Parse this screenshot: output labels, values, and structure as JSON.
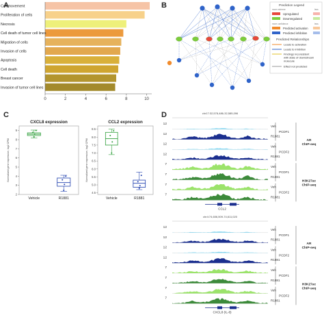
{
  "panels": {
    "a": "A",
    "b": "B",
    "c": "C",
    "d": "D"
  },
  "panelA": {
    "chart_data": {
      "type": "bar",
      "orientation": "horizontal",
      "categories": [
        "Cell movement",
        "Proliferation of cells",
        "Necrosis",
        "Cell death of tumor cell lines",
        "Migration of cells",
        "Invasion of cells",
        "Apoptosis",
        "Cell death",
        "Breast cancer",
        "Invasion of tumor cell lines"
      ],
      "values": [
        10.3,
        9.8,
        8.0,
        7.7,
        7.5,
        7.4,
        7.3,
        7.2,
        7.0,
        6.9
      ],
      "colors": [
        "#f6c4a6",
        "#f7d18a",
        "#eef07a",
        "#ec9a3d",
        "#e6b25c",
        "#e2a84e",
        "#d9b03a",
        "#cfa530",
        "#b3952e",
        "#a38a2b"
      ],
      "xlim": [
        0,
        10.5
      ],
      "xticks": [
        "0",
        "2",
        "4",
        "6",
        "8",
        "10"
      ],
      "xtick_values": [
        0,
        2,
        4,
        6,
        8,
        10
      ]
    }
  },
  "panelB": {
    "legend": {
      "title": "Prediction Legend",
      "sub1": "more extreme",
      "sub1r": "less",
      "item1": "Upregulated",
      "item2": "Downregulated",
      "sub2": "more confidence",
      "sub2r": "less",
      "item3": "Predicted activation",
      "item4": "Predicted inhibition",
      "title2": "Predicted Relationships",
      "r1": "Leads to activation",
      "r2": "Leads to inhibition",
      "r3": "Findings inconsistent",
      "r3b": "with state of downstream",
      "r3c": "molecule",
      "r4": "Effect not predicted"
    },
    "colors": {
      "up": "#e8473b",
      "down": "#7ccd3c",
      "act": "#f18b2c",
      "inh": "#2f63c9",
      "gray": "#9a9a9a",
      "yellow": "#e2c12b"
    }
  },
  "panelC": {
    "charts": [
      {
        "chart_data": {
          "type": "box",
          "title": "CXCL8 expression",
          "ylabel": "Normalized gene expression, log2 CPM",
          "categories": [
            "Vehicle",
            "R1881"
          ],
          "yticks": [
            "2",
            "3",
            "4",
            "5",
            "6",
            "7",
            "8",
            "9"
          ],
          "ytick_values": [
            2,
            3,
            4,
            5,
            6,
            7,
            8,
            9
          ],
          "ylim": [
            2,
            9.5
          ],
          "boxes": [
            {
              "color": "#2e9e3a",
              "min": 8.2,
              "q1": 8.45,
              "median": 8.6,
              "q3": 8.75,
              "max": 9.05,
              "points": [
                8.3,
                8.6,
                8.8,
                9.0
              ]
            },
            {
              "color": "#1f3fae",
              "min": 2.35,
              "q1": 2.9,
              "median": 3.3,
              "q3": 3.8,
              "max": 4.1,
              "points": [
                2.45,
                3.1,
                3.6,
                4.0
              ]
            }
          ]
        }
      },
      {
        "chart_data": {
          "type": "box",
          "title": "CCL2 expression",
          "ylabel": "Normalized gene expression, log2 CPM",
          "categories": [
            "Vehicle",
            "R1881"
          ],
          "yticks": [
            "4.5",
            "5.0",
            "5.5",
            "6.0",
            "6.5",
            "7.0",
            "7.5",
            "8.0",
            "8.5"
          ],
          "ytick_values": [
            4.5,
            5.0,
            5.5,
            6.0,
            6.5,
            7.0,
            7.5,
            8.0,
            8.5
          ],
          "ylim": [
            4.4,
            8.7
          ],
          "boxes": [
            {
              "color": "#2e9e3a",
              "min": 6.9,
              "q1": 7.5,
              "median": 7.9,
              "q3": 8.3,
              "max": 8.5,
              "points": [
                7.0,
                7.7,
                8.1,
                8.4
              ]
            },
            {
              "color": "#1f3fae",
              "min": 4.7,
              "q1": 4.85,
              "median": 5.1,
              "q3": 5.3,
              "max": 5.8,
              "points": [
                4.8,
                4.95,
                5.2,
                5.6
              ]
            }
          ]
        }
      }
    ]
  },
  "panelD": {
    "tracks": [
      {
        "region": "chr17:32,578,486-32,585,096",
        "gene": "CCL2",
        "rows": [
          {
            "scale": "12",
            "label": "Veh",
            "color": "#7fd6f2",
            "amp": 0.15
          },
          {
            "scale": "12",
            "label": "R1881",
            "color": "#1a2e8e",
            "amp": 0.75
          },
          {
            "scale": "12",
            "label": "Veh",
            "color": "#7fd6f2",
            "amp": 0.18
          },
          {
            "scale": "12",
            "label": "R1881",
            "color": "#1a2e8e",
            "amp": 0.6
          },
          {
            "scale": "7",
            "label": "Veh",
            "color": "#9be36a",
            "amp": 0.85
          },
          {
            "scale": "7",
            "label": "R1881",
            "color": "#3c8a3a",
            "amp": 0.9
          },
          {
            "scale": "7",
            "label": "Veh",
            "color": "#9be36a",
            "amp": 0.8
          },
          {
            "scale": "7",
            "label": "R1881",
            "color": "#3c8a3a",
            "amp": 0.85
          }
        ],
        "groups": [
          "PCDF1",
          "PCDF2",
          "PCDF1",
          "PCDF2"
        ],
        "assays": [
          [
            "AR",
            "ChIP-seq"
          ],
          [
            "H3K27ac",
            "ChIP-seq"
          ]
        ]
      },
      {
        "region": "chr4:74,606,509-74,611,020",
        "gene": "CXCL8 (IL-8)",
        "rows": [
          {
            "scale": "12",
            "label": "Veh",
            "color": "#7fd6f2",
            "amp": 0.15
          },
          {
            "scale": "12",
            "label": "R1881",
            "color": "#1a2e8e",
            "amp": 0.55
          },
          {
            "scale": "12",
            "label": "Veh",
            "color": "#7fd6f2",
            "amp": 0.15
          },
          {
            "scale": "12",
            "label": "R1881",
            "color": "#1a2e8e",
            "amp": 0.65
          },
          {
            "scale": "7",
            "label": "Veh",
            "color": "#9be36a",
            "amp": 0.55
          },
          {
            "scale": "7",
            "label": "R1881",
            "color": "#3c8a3a",
            "amp": 0.6
          },
          {
            "scale": "7",
            "label": "Veh",
            "color": "#9be36a",
            "amp": 0.6
          },
          {
            "scale": "7",
            "label": "R1881",
            "color": "#3c8a3a",
            "amp": 0.7
          }
        ],
        "groups": [
          "PCDF1",
          "PCDF2",
          "PCDF1",
          "PCDF2"
        ],
        "assays": [
          [
            "AR",
            "ChIP-seq"
          ],
          [
            "H3K27ac",
            "ChIP-seq"
          ]
        ]
      }
    ]
  }
}
